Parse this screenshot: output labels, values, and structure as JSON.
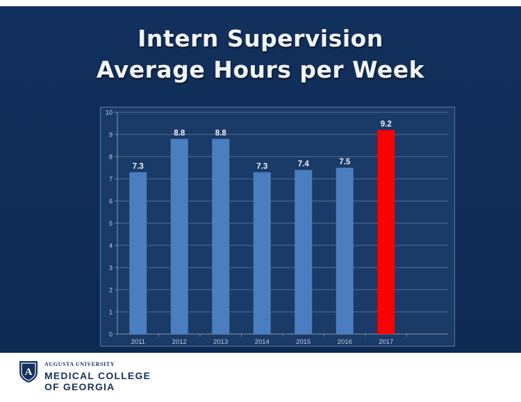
{
  "title_line1": "Intern Supervision",
  "title_line2": "Average Hours per Week",
  "colors": {
    "background": "#0f2d57",
    "bar": "#4a7ebf",
    "highlight_bar": "#ff0000",
    "label": "#f2f4f8"
  },
  "chart_data": {
    "type": "bar",
    "categories": [
      "2011",
      "2012",
      "2013",
      "2014",
      "2015",
      "2016",
      "2017"
    ],
    "values": [
      7.3,
      8.8,
      8.8,
      7.3,
      7.4,
      7.5,
      9.2
    ],
    "value_labels": [
      "7.3",
      "8.8",
      "8.8",
      "7.3",
      "7.4",
      "7.5",
      "9.2"
    ],
    "highlight": "2017",
    "ylim": [
      0,
      10
    ],
    "yticks": [
      "0",
      "1",
      "2",
      "3",
      "4",
      "5",
      "6",
      "7",
      "8",
      "9",
      "10"
    ],
    "grid": true,
    "legend": "none"
  },
  "logo": {
    "university": "AUGUSTA UNIVERSITY",
    "line1": "MEDICAL COLLEGE",
    "line2": "OF GEORGIA",
    "shield_letter": "A"
  }
}
